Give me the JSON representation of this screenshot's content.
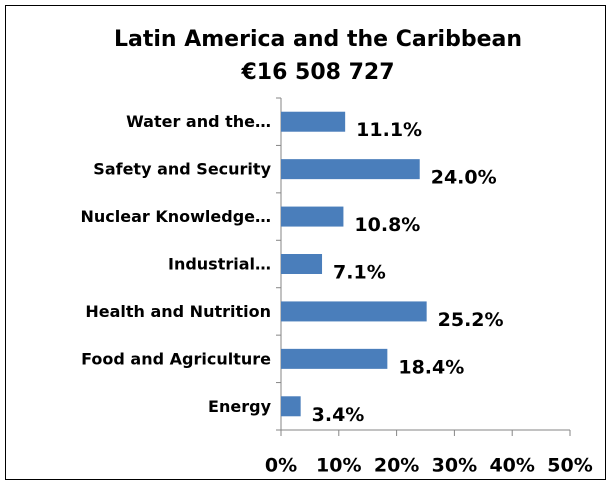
{
  "chart_data": {
    "type": "bar",
    "orientation": "horizontal",
    "title": "Latin America and the Caribbean",
    "subtitle": "€16 508 727",
    "categories": [
      "Water and the…",
      "Safety and Security",
      "Nuclear Knowledge…",
      "Industrial…",
      "Health and Nutrition",
      "Food and Agriculture",
      "Energy"
    ],
    "values": [
      11.1,
      24.0,
      10.8,
      7.1,
      25.2,
      18.4,
      3.4
    ],
    "value_labels": [
      "11.1%",
      "24.0%",
      "10.8%",
      "7.1%",
      "25.2%",
      "18.4%",
      "3.4%"
    ],
    "color": "#4a7ebb",
    "xlim": [
      0,
      50
    ],
    "xticks": [
      {
        "value": 0,
        "label": "0%"
      },
      {
        "value": 10,
        "label": "10%"
      },
      {
        "value": 20,
        "label": "20%"
      },
      {
        "value": 30,
        "label": "30%"
      },
      {
        "value": 40,
        "label": "40%"
      },
      {
        "value": 50,
        "label": "50%"
      }
    ],
    "grid": false
  }
}
